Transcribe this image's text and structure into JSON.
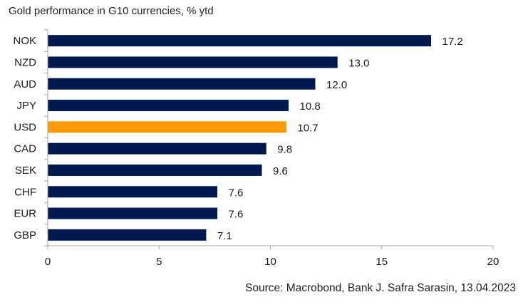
{
  "chart_data": {
    "type": "bar",
    "orientation": "horizontal",
    "title": "Gold performance in G10 currencies, % ytd",
    "source": "Source: Macrobond, Bank J. Safra Sarasin, 13.04.2023",
    "xlabel": "",
    "ylabel": "",
    "categories": [
      "NOK",
      "NZD",
      "AUD",
      "JPY",
      "USD",
      "CAD",
      "SEK",
      "CHF",
      "EUR",
      "GBP"
    ],
    "values": [
      17.2,
      13.0,
      12.0,
      10.8,
      10.7,
      9.8,
      9.6,
      7.6,
      7.6,
      7.1
    ],
    "value_labels": [
      "17.2",
      "13.0",
      "12.0",
      "10.8",
      "10.7",
      "9.8",
      "9.6",
      "7.6",
      "7.6",
      "7.1"
    ],
    "highlight": "USD",
    "xlim": [
      0,
      20
    ],
    "xticks": [
      0,
      5,
      10,
      15,
      20
    ],
    "grid": false,
    "legend": "none",
    "colors": {
      "default": "#001a50",
      "highlight": "#ff9900",
      "axis": "#a6a6a6"
    }
  }
}
